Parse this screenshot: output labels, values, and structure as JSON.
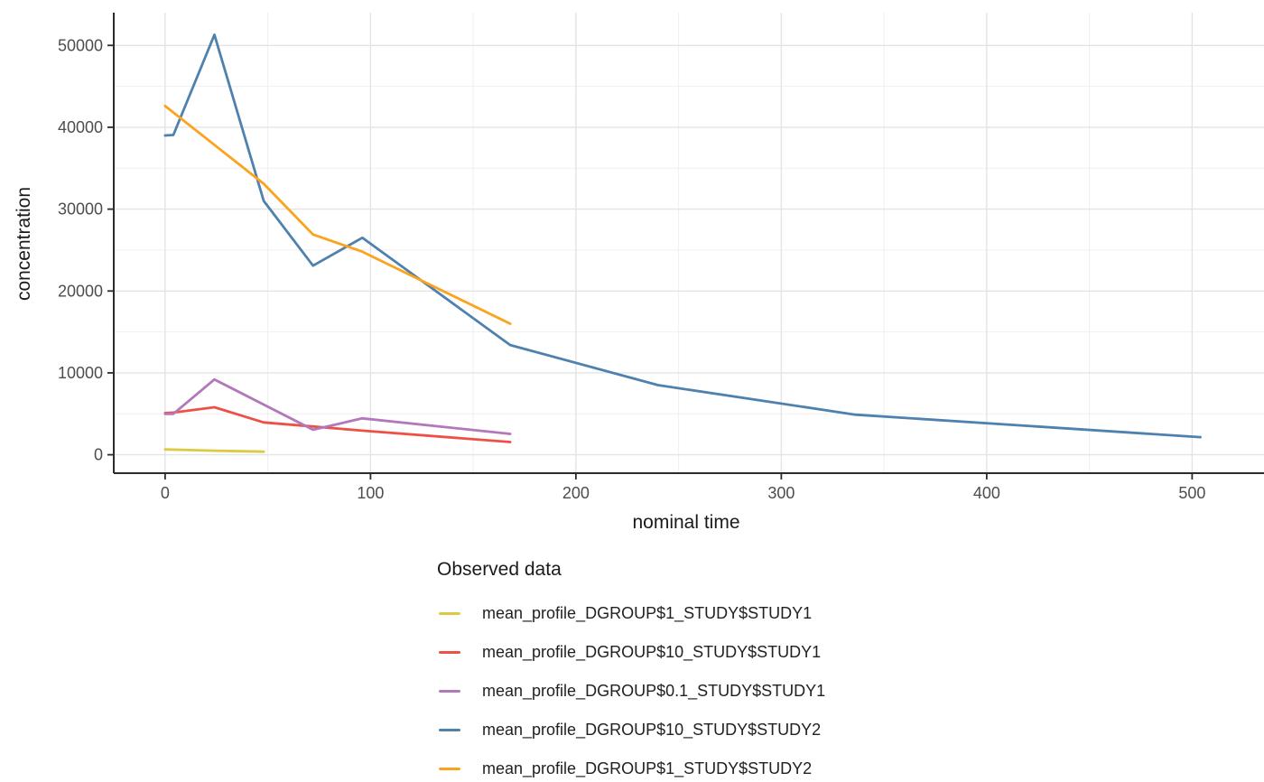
{
  "chart_data": {
    "type": "line",
    "title": "",
    "xlabel": "nominal time",
    "ylabel": "concentration",
    "legend_title": "Observed data",
    "legend_position": "bottom-left",
    "grid": true,
    "xlim": [
      -25,
      535
    ],
    "ylim": [
      -2250,
      54000
    ],
    "x_ticks": [
      0,
      100,
      200,
      300,
      400,
      500
    ],
    "y_ticks": [
      0,
      10000,
      20000,
      30000,
      40000,
      50000
    ],
    "x_minor_ticks": [
      50,
      150,
      250,
      350,
      450
    ],
    "y_minor_ticks": [
      5000,
      15000,
      25000,
      35000,
      45000
    ],
    "series": [
      {
        "name": "mean_profile_DGROUP$1_STUDY$STUDY1",
        "color": "#ddca42",
        "points": [
          [
            0,
            650
          ],
          [
            24,
            500
          ],
          [
            48,
            380
          ]
        ]
      },
      {
        "name": "mean_profile_DGROUP$10_STUDY$STUDY1",
        "color": "#ee5045",
        "points": [
          [
            0,
            5100
          ],
          [
            4,
            5150
          ],
          [
            24,
            5800
          ],
          [
            48,
            3950
          ],
          [
            72,
            3450
          ],
          [
            96,
            2950
          ],
          [
            168,
            1550
          ]
        ]
      },
      {
        "name": "mean_profile_DGROUP$0.1_STUDY$STUDY1",
        "color": "#b377bc",
        "points": [
          [
            0,
            5000
          ],
          [
            4,
            5000
          ],
          [
            24,
            9200
          ],
          [
            72,
            3050
          ],
          [
            96,
            4450
          ],
          [
            168,
            2550
          ]
        ]
      },
      {
        "name": "mean_profile_DGROUP$10_STUDY$STUDY2",
        "color": "#4f81ae",
        "points": [
          [
            0,
            39000
          ],
          [
            4,
            39050
          ],
          [
            24,
            51300
          ],
          [
            48,
            31000
          ],
          [
            72,
            23100
          ],
          [
            96,
            26500
          ],
          [
            168,
            13400
          ],
          [
            240,
            8500
          ],
          [
            336,
            4900
          ],
          [
            504,
            2150
          ]
        ]
      },
      {
        "name": "mean_profile_DGROUP$1_STUDY$STUDY2",
        "color": "#fba31e",
        "points": [
          [
            0,
            42600
          ],
          [
            48,
            33100
          ],
          [
            72,
            26900
          ],
          [
            96,
            24800
          ],
          [
            168,
            16000
          ]
        ]
      }
    ]
  },
  "colors": {
    "background": "#ffffff",
    "grid_major": "#e4e4e4",
    "grid_minor": "#efefef",
    "axis_line": "#2b2b2b",
    "tick_mark": "#2b2b2b",
    "axis_text": "#4d4d4d",
    "axis_title": "#1a1a1a",
    "legend_text": "#212121"
  }
}
